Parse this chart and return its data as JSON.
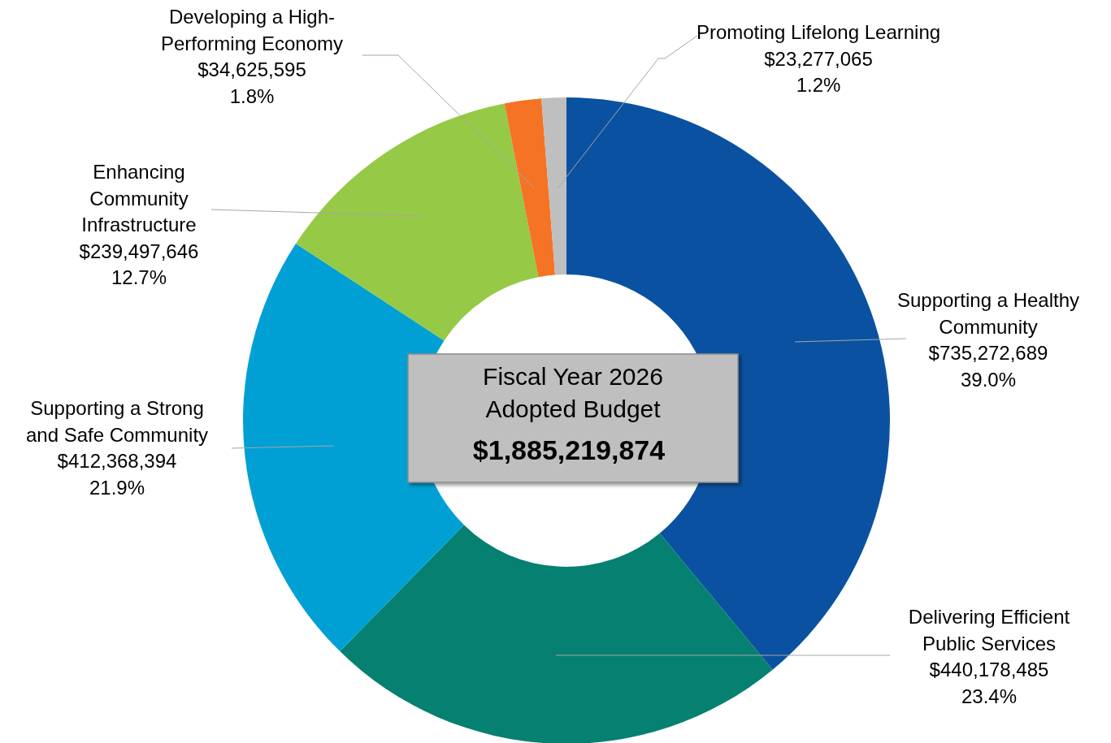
{
  "chart_data": {
    "type": "donut",
    "title": "Fiscal Year 2026 Adopted Budget",
    "annotations": [
      "$1,885,219,874"
    ],
    "categories": [
      "Supporting a Healthy Community",
      "Delivering Efficient Public Services",
      "Supporting a Strong and Safe Community",
      "Enhancing Community Infrastructure",
      "Developing a High-Performing Economy",
      "Promoting Lifelong Learning"
    ],
    "values": [
      735272689,
      440178485,
      412368394,
      239497646,
      34625595,
      23277065
    ],
    "value_labels": [
      "$735,272,689\n39.0%",
      "$440,178,485\n23.4%",
      "$412,368,394\n21.9%",
      "$239,497,646\n12.7%",
      "$34,625,595\n1.8%",
      "$23,277,065\n1.2%"
    ],
    "colors": [
      "#0a52a1",
      "#068070",
      "#00a0d4",
      "#95c946",
      "#f47324",
      "#bfbfbf"
    ]
  }
}
